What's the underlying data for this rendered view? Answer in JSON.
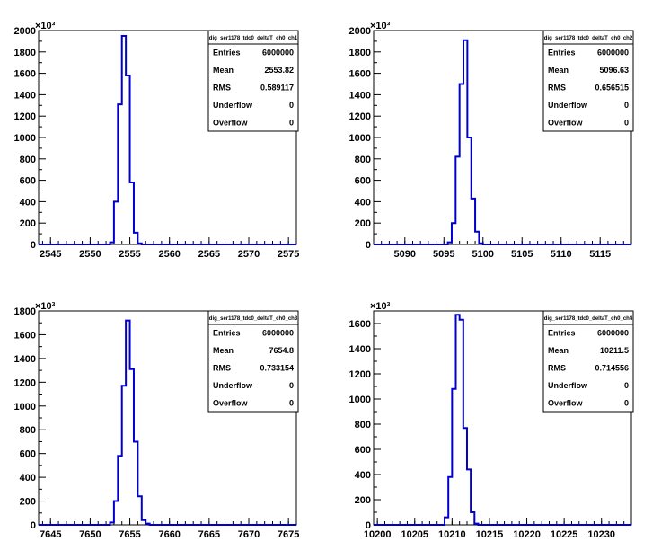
{
  "chart_data": [
    {
      "type": "histogram",
      "title": "dig_ser1178_tdc0_deltaT_ch0_ch1",
      "y_multiplier_label": "×10³",
      "xlim": [
        2543.5,
        2576
      ],
      "ylim": [
        0,
        2000
      ],
      "y_ticks": [
        0,
        200,
        400,
        600,
        800,
        1000,
        1200,
        1400,
        1600,
        1800,
        2000
      ],
      "x_ticks": [
        2545,
        2550,
        2555,
        2560,
        2565,
        2570,
        2575
      ],
      "bin_width": 0.5,
      "bins": [
        [
          2552.5,
          20
        ],
        [
          2553,
          400
        ],
        [
          2553.5,
          1310
        ],
        [
          2554,
          1950
        ],
        [
          2554.5,
          1580
        ],
        [
          2555,
          580
        ],
        [
          2555.5,
          110
        ],
        [
          2556,
          10
        ]
      ],
      "stats": {
        "Entries": "6000000",
        "Mean": "2553.82",
        "RMS": "0.589117",
        "Underflow": "0",
        "Overflow": "0"
      }
    },
    {
      "type": "histogram",
      "title": "dig_ser1178_tdc0_deltaT_ch0_ch2",
      "y_multiplier_label": "×10³",
      "xlim": [
        5086,
        5119
      ],
      "ylim": [
        0,
        2000
      ],
      "y_ticks": [
        0,
        200,
        400,
        600,
        800,
        1000,
        1200,
        1400,
        1600,
        1800,
        2000
      ],
      "x_ticks": [
        5090,
        5095,
        5100,
        5105,
        5110,
        5115
      ],
      "bin_width": 0.5,
      "bins": [
        [
          5095.5,
          20
        ],
        [
          5096,
          200
        ],
        [
          5096.5,
          820
        ],
        [
          5097,
          1500
        ],
        [
          5097.5,
          1910
        ],
        [
          5098,
          1000
        ],
        [
          5098.5,
          430
        ],
        [
          5099,
          120
        ],
        [
          5099.5,
          10
        ]
      ],
      "stats": {
        "Entries": "6000000",
        "Mean": "5096.63",
        "RMS": "0.656515",
        "Underflow": "0",
        "Overflow": "0"
      }
    },
    {
      "type": "histogram",
      "title": "dig_ser1178_tdc0_deltaT_ch0_ch3",
      "y_multiplier_label": "×10³",
      "xlim": [
        7643.5,
        7676
      ],
      "ylim": [
        0,
        1800
      ],
      "y_ticks": [
        0,
        200,
        400,
        600,
        800,
        1000,
        1200,
        1400,
        1600,
        1800
      ],
      "x_ticks": [
        7645,
        7650,
        7655,
        7660,
        7665,
        7670,
        7675
      ],
      "bin_width": 0.5,
      "bins": [
        [
          7652.5,
          20
        ],
        [
          7653,
          200
        ],
        [
          7653.5,
          580
        ],
        [
          7654,
          1170
        ],
        [
          7654.5,
          1720
        ],
        [
          7655,
          1310
        ],
        [
          7655.5,
          700
        ],
        [
          7656,
          240
        ],
        [
          7656.5,
          40
        ],
        [
          7657,
          10
        ]
      ],
      "stats": {
        "Entries": "6000000",
        "Mean": "7654.8",
        "RMS": "0.733154",
        "Underflow": "0",
        "Overflow": "0"
      }
    },
    {
      "type": "histogram",
      "title": "dig_ser1178_tdc0_deltaT_ch0_ch4",
      "y_multiplier_label": "×10³",
      "xlim": [
        10199.5,
        10234
      ],
      "ylim": [
        0,
        1700
      ],
      "y_ticks": [
        0,
        200,
        400,
        600,
        800,
        1000,
        1200,
        1400,
        1600
      ],
      "x_ticks": [
        10200,
        10205,
        10210,
        10215,
        10220,
        10225,
        10230
      ],
      "bin_width": 0.5,
      "bins": [
        [
          10209,
          60
        ],
        [
          10209.5,
          380
        ],
        [
          10210,
          1080
        ],
        [
          10210.5,
          1670
        ],
        [
          10211,
          1630
        ],
        [
          10211.5,
          770
        ],
        [
          10212,
          440
        ],
        [
          10212.5,
          100
        ],
        [
          10213,
          10
        ]
      ],
      "stats": {
        "Entries": "6000000",
        "Mean": "10211.5",
        "RMS": "0.714556",
        "Underflow": "0",
        "Overflow": "0"
      }
    }
  ]
}
